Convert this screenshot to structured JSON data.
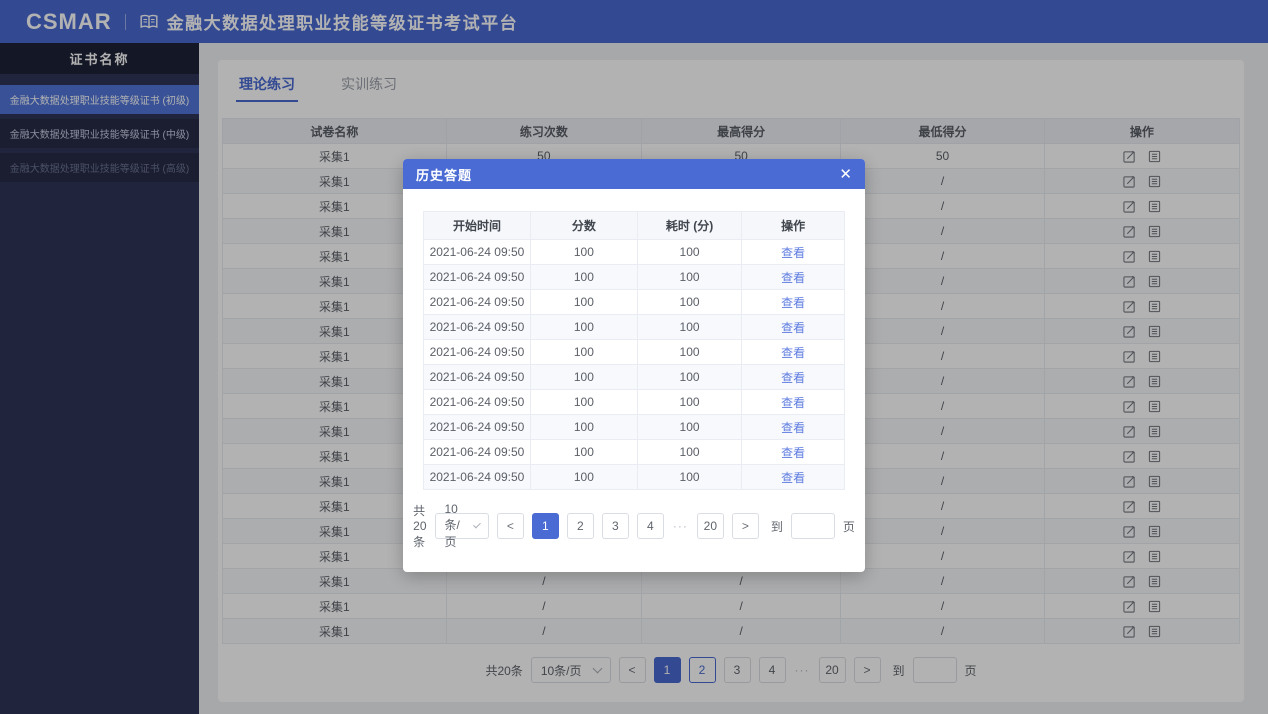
{
  "colors": {
    "accent": "#4a6bd3",
    "link": "#5e7ce0",
    "sidebar_bg": "#2e3456",
    "sidebar_selected": "#5175d8"
  },
  "header": {
    "logo": "CSMAR",
    "title": "金融大数据处理职业技能等级证书考试平台"
  },
  "sidebar": {
    "title": "证书名称",
    "items": [
      {
        "label": "金融大数据处理职业技能等级证书 (初级)",
        "state": "active"
      },
      {
        "label": "金融大数据处理职业技能等级证书 (中级)",
        "state": "normal"
      },
      {
        "label": "金融大数据处理职业技能等级证书 (高级)",
        "state": "disabled"
      }
    ]
  },
  "tabs": [
    {
      "label": "理论练习",
      "active": true
    },
    {
      "label": "实训练习",
      "active": false
    }
  ],
  "practice_table": {
    "columns": [
      "试卷名称",
      "练习次数",
      "最高得分",
      "最低得分",
      "操作"
    ],
    "action_icons": [
      "edit-icon",
      "record-icon"
    ],
    "rows": [
      {
        "name": "采集1",
        "count": "50",
        "max": "50",
        "min": "50"
      },
      {
        "name": "采集1",
        "count": "/",
        "max": "/",
        "min": "/"
      },
      {
        "name": "采集1",
        "count": "/",
        "max": "/",
        "min": "/"
      },
      {
        "name": "采集1",
        "count": "/",
        "max": "/",
        "min": "/"
      },
      {
        "name": "采集1",
        "count": "/",
        "max": "/",
        "min": "/"
      },
      {
        "name": "采集1",
        "count": "/",
        "max": "/",
        "min": "/"
      },
      {
        "name": "采集1",
        "count": "/",
        "max": "/",
        "min": "/"
      },
      {
        "name": "采集1",
        "count": "/",
        "max": "/",
        "min": "/"
      },
      {
        "name": "采集1",
        "count": "/",
        "max": "/",
        "min": "/"
      },
      {
        "name": "采集1",
        "count": "/",
        "max": "/",
        "min": "/"
      },
      {
        "name": "采集1",
        "count": "/",
        "max": "/",
        "min": "/"
      },
      {
        "name": "采集1",
        "count": "/",
        "max": "/",
        "min": "/"
      },
      {
        "name": "采集1",
        "count": "/",
        "max": "/",
        "min": "/"
      },
      {
        "name": "采集1",
        "count": "/",
        "max": "/",
        "min": "/"
      },
      {
        "name": "采集1",
        "count": "/",
        "max": "/",
        "min": "/"
      },
      {
        "name": "采集1",
        "count": "/",
        "max": "/",
        "min": "/"
      },
      {
        "name": "采集1",
        "count": "/",
        "max": "/",
        "min": "/"
      },
      {
        "name": "采集1",
        "count": "/",
        "max": "/",
        "min": "/"
      },
      {
        "name": "采集1",
        "count": "/",
        "max": "/",
        "min": "/"
      },
      {
        "name": "采集1",
        "count": "/",
        "max": "/",
        "min": "/"
      }
    ]
  },
  "practice_pagination": {
    "total": "共20条",
    "page_size": "10条/页",
    "prev": "<",
    "next": ">",
    "pages": [
      "1",
      "2",
      "3",
      "4",
      "···",
      "20"
    ],
    "active_page": "1",
    "highlight_page": "2",
    "goto_label": "到",
    "page_unit": "页"
  },
  "modal": {
    "title": "历史答题",
    "close": "✕",
    "history_table": {
      "columns": [
        "开始时间",
        "分数",
        "耗时 (分)",
        "操作"
      ],
      "rows": [
        {
          "start": "2021-06-24 09:50",
          "score": "100",
          "minutes": "100",
          "action": "查看"
        },
        {
          "start": "2021-06-24 09:50",
          "score": "100",
          "minutes": "100",
          "action": "查看"
        },
        {
          "start": "2021-06-24 09:50",
          "score": "100",
          "minutes": "100",
          "action": "查看"
        },
        {
          "start": "2021-06-24 09:50",
          "score": "100",
          "minutes": "100",
          "action": "查看"
        },
        {
          "start": "2021-06-24 09:50",
          "score": "100",
          "minutes": "100",
          "action": "查看"
        },
        {
          "start": "2021-06-24 09:50",
          "score": "100",
          "minutes": "100",
          "action": "查看"
        },
        {
          "start": "2021-06-24 09:50",
          "score": "100",
          "minutes": "100",
          "action": "查看"
        },
        {
          "start": "2021-06-24 09:50",
          "score": "100",
          "minutes": "100",
          "action": "查看"
        },
        {
          "start": "2021-06-24 09:50",
          "score": "100",
          "minutes": "100",
          "action": "查看"
        },
        {
          "start": "2021-06-24 09:50",
          "score": "100",
          "minutes": "100",
          "action": "查看"
        }
      ]
    },
    "pagination": {
      "total": "共20条",
      "page_size": "10条/页",
      "prev": "<",
      "next": ">",
      "pages": [
        "1",
        "2",
        "3",
        "4",
        "···",
        "20"
      ],
      "active_page": "1",
      "goto_label": "到",
      "page_unit": "页"
    }
  }
}
